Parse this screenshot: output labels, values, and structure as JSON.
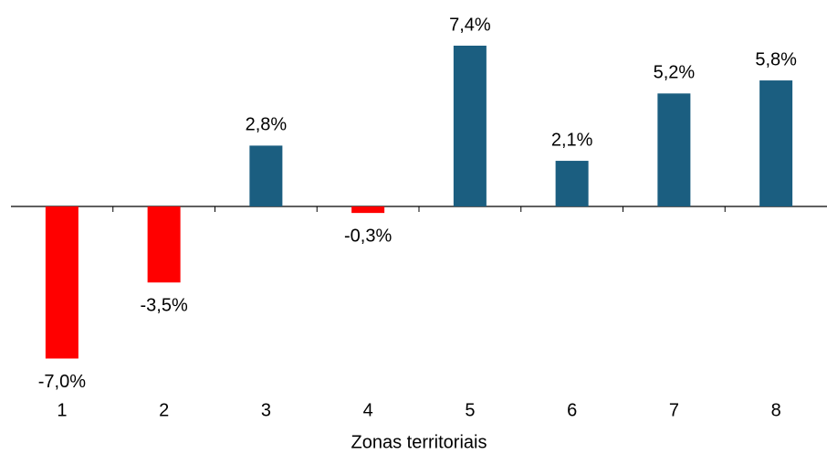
{
  "chart_data": {
    "type": "bar",
    "x_label": "Zonas territoriais",
    "categories": [
      "1",
      "2",
      "3",
      "4",
      "5",
      "6",
      "7",
      "8"
    ],
    "values": [
      -7.0,
      -3.5,
      2.8,
      -0.3,
      7.4,
      2.1,
      5.2,
      5.8
    ],
    "value_labels": [
      "-7,0%",
      "-3,5%",
      "2,8%",
      "-0,3%",
      "7,4%",
      "2,1%",
      "5,2%",
      "5,8%"
    ],
    "colors": [
      "#ff0000",
      "#ff0000",
      "#1b5e80",
      "#ff0000",
      "#1b5e80",
      "#1b5e80",
      "#1b5e80",
      "#1b5e80"
    ],
    "grid": false
  }
}
